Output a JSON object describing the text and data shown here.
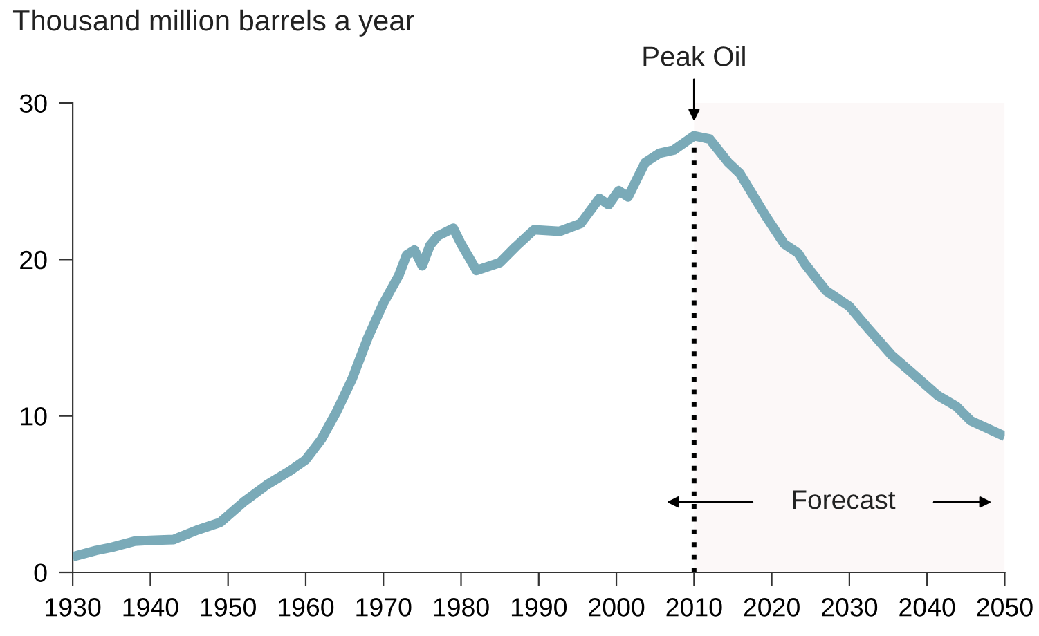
{
  "chart_data": {
    "type": "line",
    "ylabel": "Thousand million barrels a year",
    "x": [
      1930,
      1933,
      1935,
      1938,
      1940,
      1943,
      1946,
      1949,
      1952,
      1955,
      1958,
      1960,
      1962,
      1964,
      1966,
      1968,
      1970,
      1972,
      1973,
      1974,
      1975,
      1976,
      1977,
      1979,
      1980,
      1982,
      1985,
      1987,
      1989.4,
      1992.7,
      1995.4,
      1997.8,
      1999,
      2000.3,
      2001.5,
      2003.7,
      2005.6,
      2007.4,
      2010,
      2012,
      2014.4,
      2015.9,
      2019.2,
      2021.6,
      2023.4,
      2024.3,
      2027,
      2030,
      2032.4,
      2035.4,
      2038.4,
      2041.4,
      2043.8,
      2045.6,
      2050
    ],
    "series": [
      {
        "color": "#7aaab8",
        "values": [
          1.0,
          1.4,
          1.6,
          2.0,
          2.05,
          2.1,
          2.7,
          3.2,
          4.5,
          5.6,
          6.5,
          7.2,
          8.5,
          10.3,
          12.4,
          15.0,
          17.2,
          19.0,
          20.3,
          20.6,
          19.6,
          20.9,
          21.5,
          22.0,
          21.0,
          19.3,
          19.8,
          20.8,
          21.9,
          21.8,
          22.3,
          23.9,
          23.5,
          24.4,
          24.0,
          26.2,
          26.8,
          27.0,
          27.9,
          27.7,
          26.2,
          25.5,
          22.8,
          21.0,
          20.4,
          19.7,
          18.0,
          17.0,
          15.6,
          13.9,
          12.6,
          11.3,
          10.6,
          9.7,
          8.7
        ]
      }
    ],
    "xlim": [
      1930,
      2050
    ],
    "xticks": [
      1930,
      1940,
      1950,
      1960,
      1970,
      1980,
      1990,
      2000,
      2010,
      2020,
      2030,
      2040,
      2050
    ],
    "ylim": [
      0,
      30
    ],
    "yticks": [
      0,
      10,
      20,
      30
    ],
    "ref_lines": [
      {
        "axis": "x",
        "value": 2010,
        "label": "Peak Oil",
        "color": "#000000",
        "line_style": "dotted"
      }
    ],
    "bands": [
      {
        "axis": "x",
        "from": 2010,
        "to": 2050,
        "label": "Forecast",
        "color": "#fcf8f8"
      }
    ],
    "grid": false,
    "legend": false
  }
}
